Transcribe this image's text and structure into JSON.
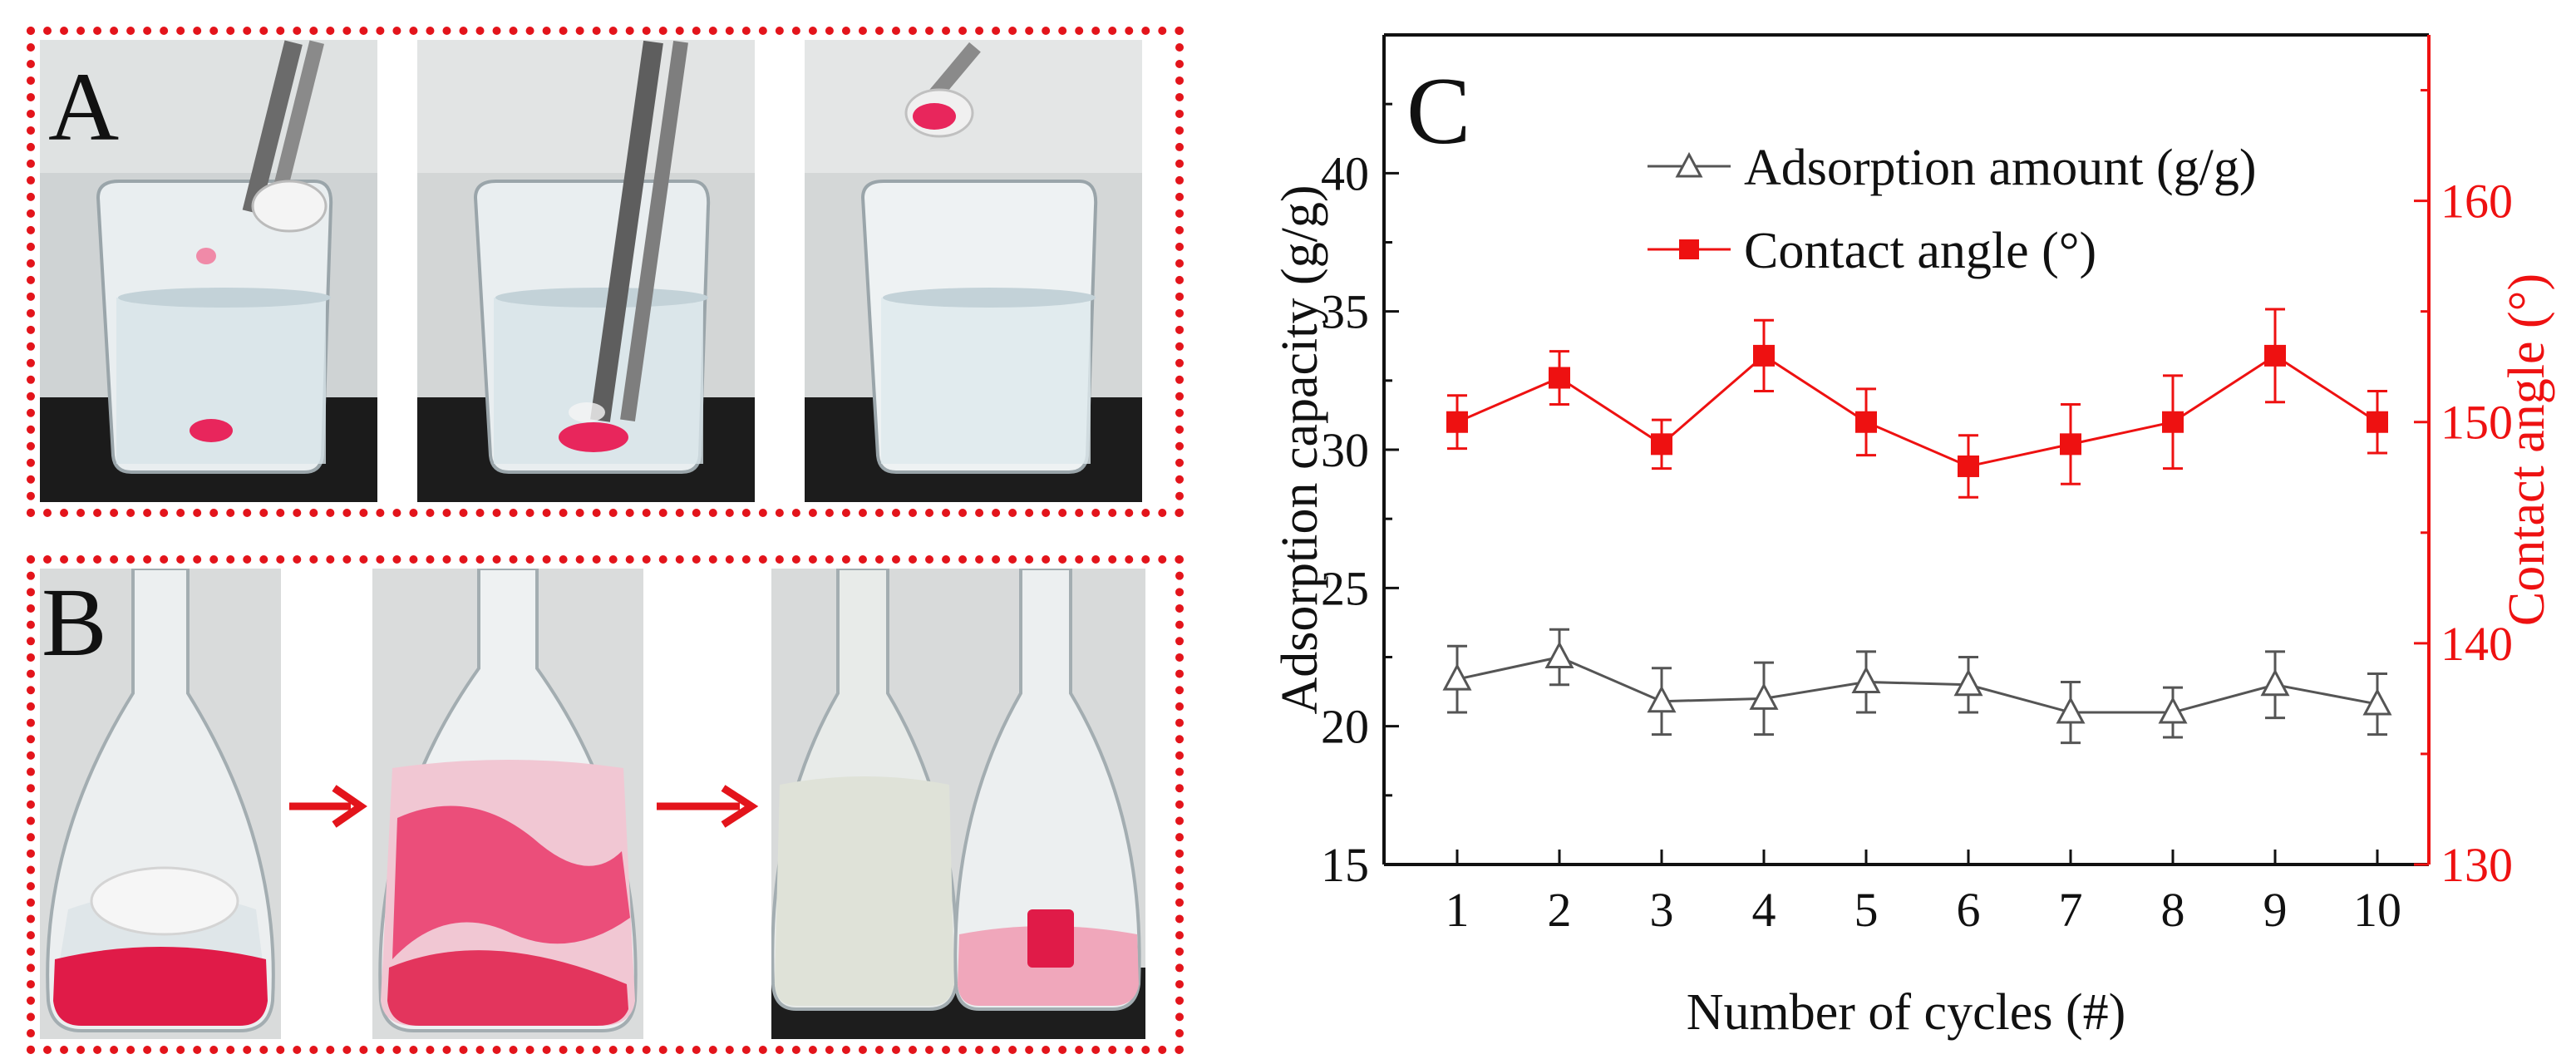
{
  "panels": {
    "a": {
      "label": "A"
    },
    "b": {
      "label": "B"
    },
    "c": {
      "label": "C"
    }
  },
  "colors": {
    "frame": "#e3141b",
    "absorbed_dye": "#e8265c",
    "bench": "#1a1a1a",
    "series_adsorption": "#555555",
    "series_contact": "#ee1111"
  },
  "chart_data": {
    "type": "line",
    "panel_label": "C",
    "xlabel": "Number of cycles (#)",
    "ylabel_left": "Adsorption capacity (g/g)",
    "ylabel_right": "Contact angle (°)",
    "x": [
      1,
      2,
      3,
      4,
      5,
      6,
      7,
      8,
      9,
      10
    ],
    "x_tick_labels": [
      "1",
      "2",
      "3",
      "4",
      "5",
      "6",
      "7",
      "8",
      "9",
      "10"
    ],
    "ylim_left": [
      15,
      45
    ],
    "yticks_left": [
      15,
      20,
      25,
      30,
      35,
      40
    ],
    "ylim_right": [
      130,
      167.5
    ],
    "yticks_right": [
      130,
      140,
      150,
      160
    ],
    "legend_position": "top-center",
    "series": [
      {
        "name": "Adsorption amount (g/g)",
        "axis": "left",
        "marker": "open-triangle",
        "color": "#555555",
        "values": [
          21.7,
          22.5,
          20.9,
          21.0,
          21.6,
          21.5,
          20.5,
          20.5,
          21.5,
          20.8
        ],
        "errors": [
          1.2,
          1.0,
          1.2,
          1.3,
          1.1,
          1.0,
          1.1,
          0.9,
          1.2,
          1.1
        ]
      },
      {
        "name": "Contact angle (°)",
        "axis": "right",
        "marker": "filled-square",
        "color": "#ee1111",
        "values": [
          150.0,
          152.0,
          149.0,
          153.0,
          150.0,
          148.0,
          149.0,
          150.0,
          153.0,
          150.0
        ],
        "errors": [
          1.2,
          1.2,
          1.1,
          1.6,
          1.5,
          1.4,
          1.8,
          2.1,
          2.1,
          1.4
        ]
      }
    ]
  }
}
